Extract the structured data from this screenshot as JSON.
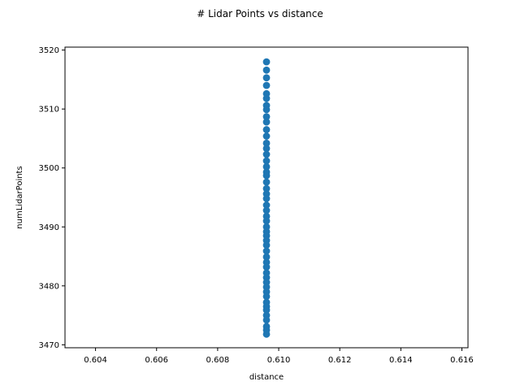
{
  "chart_data": {
    "type": "scatter",
    "title": "# Lidar Points vs distance",
    "xlabel": "distance",
    "ylabel": "numLidarPoints",
    "xlim": [
      0.603,
      0.6162
    ],
    "ylim": [
      3469.5,
      3520.5
    ],
    "xticks": [
      "0.604",
      "0.606",
      "0.608",
      "0.610",
      "0.612",
      "0.614",
      "0.616"
    ],
    "yticks": [
      "3470",
      "3480",
      "3490",
      "3500",
      "3510",
      "3520"
    ],
    "grid": false,
    "marker_color": "#1f77b4",
    "series": [
      {
        "x": [
          0.6096,
          0.6096,
          0.6096,
          0.6096,
          0.6096,
          0.6096,
          0.6096,
          0.6096,
          0.6096,
          0.6096,
          0.6096,
          0.6096,
          0.6096,
          0.6096,
          0.6096,
          0.6096,
          0.6096,
          0.6096,
          0.6096,
          0.6096,
          0.6096,
          0.6096,
          0.6096,
          0.6096,
          0.6096,
          0.6096,
          0.6096,
          0.6096,
          0.6096,
          0.6096,
          0.6096,
          0.6096,
          0.6096,
          0.6096,
          0.6096,
          0.6096,
          0.6096,
          0.6096,
          0.6096,
          0.6096,
          0.6096,
          0.6096,
          0.6096,
          0.6096,
          0.6096,
          0.6096,
          0.6096,
          0.6096,
          0.6096,
          0.6096
        ],
        "y": [
          3518,
          3516.6,
          3515.3,
          3514,
          3512.6,
          3511.8,
          3510.6,
          3509.9,
          3508.7,
          3507.8,
          3506.5,
          3505.4,
          3504.2,
          3503.3,
          3502.3,
          3501.2,
          3500.2,
          3499.3,
          3498.7,
          3497.6,
          3496.5,
          3495.6,
          3494.8,
          3493.7,
          3492.8,
          3491.8,
          3491.0,
          3490.0,
          3489.2,
          3488.5,
          3487.7,
          3486.9,
          3485.9,
          3484.9,
          3484.0,
          3483.2,
          3482.2,
          3481.4,
          3480.6,
          3479.8,
          3479.0,
          3478.2,
          3477.2,
          3476.5,
          3475.9,
          3475.0,
          3474.2,
          3473.1,
          3472.5,
          3471.8
        ]
      }
    ]
  }
}
